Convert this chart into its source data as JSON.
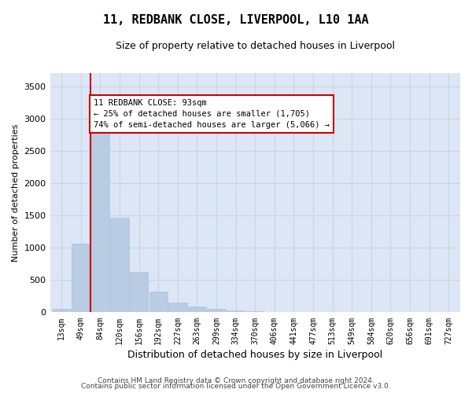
{
  "title1": "11, REDBANK CLOSE, LIVERPOOL, L10 1AA",
  "title2": "Size of property relative to detached houses in Liverpool",
  "xlabel": "Distribution of detached houses by size in Liverpool",
  "ylabel": "Number of detached properties",
  "categories": [
    "13sqm",
    "49sqm",
    "84sqm",
    "120sqm",
    "156sqm",
    "192sqm",
    "227sqm",
    "263sqm",
    "299sqm",
    "334sqm",
    "370sqm",
    "406sqm",
    "441sqm",
    "477sqm",
    "513sqm",
    "549sqm",
    "584sqm",
    "620sqm",
    "656sqm",
    "691sqm",
    "727sqm"
  ],
  "values": [
    50,
    1060,
    3280,
    1460,
    620,
    320,
    155,
    88,
    52,
    32,
    20,
    10,
    6,
    3,
    2,
    1,
    0,
    0,
    0,
    0,
    0
  ],
  "bar_color": "#b8cce4",
  "bar_edge_color": "#aabbd8",
  "red_line_color": "#cc0000",
  "annotation_text": "11 REDBANK CLOSE: 93sqm\n← 25% of detached houses are smaller (1,705)\n74% of semi-detached houses are larger (5,066) →",
  "annotation_box_color": "#ffffff",
  "annotation_edge_color": "#cc0000",
  "grid_color": "#c8d4e8",
  "background_color": "#dce6f5",
  "footer1": "Contains HM Land Registry data © Crown copyright and database right 2024.",
  "footer2": "Contains public sector information licensed under the Open Government Licence v3.0.",
  "ylim": [
    0,
    3700
  ],
  "yticks": [
    0,
    500,
    1000,
    1500,
    2000,
    2500,
    3000,
    3500
  ],
  "red_line_x": 1.5
}
